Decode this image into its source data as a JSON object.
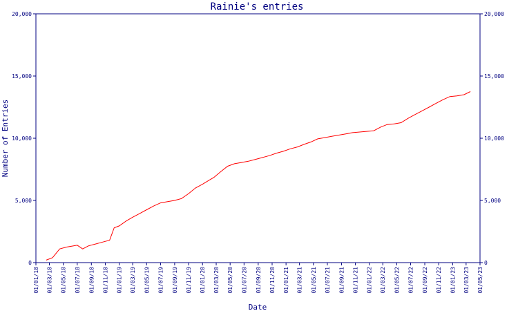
{
  "chart_data": {
    "type": "line",
    "title": "Rainie's entries",
    "xlabel": "Date",
    "ylabel": "Number of Entries",
    "ylim": [
      0,
      20000
    ],
    "yticks": [
      0,
      5000,
      10000,
      15000,
      20000
    ],
    "ytick_labels": [
      "0",
      "5,000",
      "10,000",
      "15,000",
      "20,000"
    ],
    "xlim": [
      "2018-01-01",
      "2023-05-01"
    ],
    "xtick_labels": [
      "01/01/18",
      "01/03/18",
      "01/05/18",
      "01/07/18",
      "01/09/18",
      "01/11/18",
      "01/01/19",
      "01/03/19",
      "01/05/19",
      "01/07/19",
      "01/09/19",
      "01/11/19",
      "01/01/20",
      "01/03/20",
      "01/05/20",
      "01/07/20",
      "01/09/20",
      "01/11/20",
      "01/01/21",
      "01/03/21",
      "01/05/21",
      "01/07/21",
      "01/09/21",
      "01/11/21",
      "01/01/22",
      "01/03/22",
      "01/05/22",
      "01/07/22",
      "01/09/22",
      "01/11/22",
      "01/01/23",
      "01/03/23",
      "01/05/23"
    ],
    "grid": false,
    "series": [
      {
        "color": "#ff0000",
        "points": [
          [
            "2018-02-15",
            200
          ],
          [
            "2018-03-15",
            400
          ],
          [
            "2018-04-15",
            1100
          ],
          [
            "2018-05-15",
            1250
          ],
          [
            "2018-06-15",
            1350
          ],
          [
            "2018-07-01",
            1400
          ],
          [
            "2018-07-25",
            1100
          ],
          [
            "2018-08-20",
            1350
          ],
          [
            "2018-09-20",
            1500
          ],
          [
            "2018-10-20",
            1650
          ],
          [
            "2018-11-20",
            1800
          ],
          [
            "2018-12-10",
            2800
          ],
          [
            "2019-01-01",
            2950
          ],
          [
            "2019-02-01",
            3350
          ],
          [
            "2019-03-01",
            3650
          ],
          [
            "2019-04-01",
            3950
          ],
          [
            "2019-05-01",
            4250
          ],
          [
            "2019-06-01",
            4550
          ],
          [
            "2019-07-01",
            4800
          ],
          [
            "2019-08-01",
            4900
          ],
          [
            "2019-09-01",
            5000
          ],
          [
            "2019-10-01",
            5150
          ],
          [
            "2019-11-01",
            5550
          ],
          [
            "2019-12-01",
            6000
          ],
          [
            "2020-01-01",
            6300
          ],
          [
            "2020-02-01",
            6650
          ],
          [
            "2020-02-20",
            6850
          ],
          [
            "2020-03-20",
            7300
          ],
          [
            "2020-04-20",
            7750
          ],
          [
            "2020-05-20",
            7950
          ],
          [
            "2020-06-20",
            8050
          ],
          [
            "2020-07-20",
            8150
          ],
          [
            "2020-08-20",
            8300
          ],
          [
            "2020-09-20",
            8450
          ],
          [
            "2020-10-20",
            8600
          ],
          [
            "2020-11-20",
            8800
          ],
          [
            "2020-12-20",
            8950
          ],
          [
            "2021-01-20",
            9150
          ],
          [
            "2021-02-20",
            9300
          ],
          [
            "2021-03-20",
            9500
          ],
          [
            "2021-04-20",
            9700
          ],
          [
            "2021-05-20",
            9950
          ],
          [
            "2021-06-20",
            10050
          ],
          [
            "2021-07-20",
            10150
          ],
          [
            "2021-08-20",
            10250
          ],
          [
            "2021-09-20",
            10350
          ],
          [
            "2021-10-20",
            10450
          ],
          [
            "2021-11-20",
            10500
          ],
          [
            "2021-12-20",
            10550
          ],
          [
            "2022-01-20",
            10600
          ],
          [
            "2022-02-20",
            10900
          ],
          [
            "2022-03-20",
            11100
          ],
          [
            "2022-04-20",
            11150
          ],
          [
            "2022-05-20",
            11250
          ],
          [
            "2022-06-20",
            11600
          ],
          [
            "2022-07-20",
            11900
          ],
          [
            "2022-08-20",
            12200
          ],
          [
            "2022-09-20",
            12500
          ],
          [
            "2022-10-20",
            12800
          ],
          [
            "2022-11-20",
            13100
          ],
          [
            "2022-12-20",
            13350
          ],
          [
            "2023-01-20",
            13400
          ],
          [
            "2023-02-20",
            13500
          ],
          [
            "2023-03-20",
            13750
          ]
        ]
      }
    ]
  },
  "colors": {
    "axis": "#000080",
    "text": "#000080",
    "line": "#ff0000",
    "background": "#ffffff"
  }
}
